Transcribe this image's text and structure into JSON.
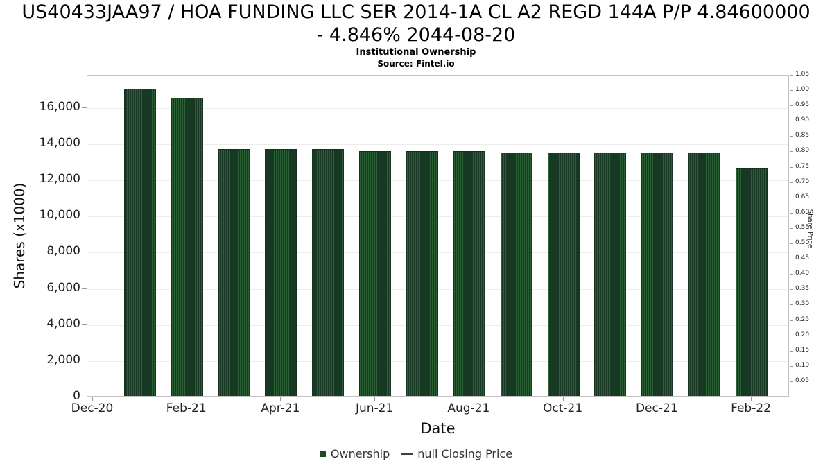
{
  "header": {
    "title_line1": "US40433JAA97 / HOA FUNDING LLC SER 2014-1A CL A2 REGD 144A P/P 4.84600000",
    "title_line2": "- 4.846% 2044-08-20",
    "subtitle": "Institutional Ownership",
    "source": "Source: Fintel.io"
  },
  "chart_data": {
    "type": "bar",
    "title": "US40433JAA97 / HOA FUNDING LLC SER 2014-1A CL A2 REGD 144A P/P 4.84600000 - 4.846% 2044-08-20",
    "subtitle": "Institutional Ownership",
    "source": "Source: Fintel.io",
    "xlabel": "Date",
    "ylabel": "Shares (x1000)",
    "y2label": "Share Price",
    "categories": [
      "Jan-21",
      "Feb-21",
      "Mar-21",
      "Apr-21",
      "May-21",
      "Jun-21",
      "Jul-21",
      "Aug-21",
      "Sep-21",
      "Oct-21",
      "Nov-21",
      "Dec-21",
      "Jan-22",
      "Feb-22"
    ],
    "series": [
      {
        "name": "Ownership",
        "values": [
          17000,
          16500,
          13650,
          13650,
          13650,
          13560,
          13560,
          13560,
          13480,
          13480,
          13480,
          13480,
          13480,
          12600
        ]
      }
    ],
    "ylim": [
      0,
      17800
    ],
    "y2lim": [
      0,
      1.05
    ],
    "grid": true,
    "legend_position": "bottom",
    "x_ticks": [
      {
        "label": "Dec-20",
        "month": 0
      },
      {
        "label": "Feb-21",
        "month": 2
      },
      {
        "label": "Apr-21",
        "month": 4
      },
      {
        "label": "Jun-21",
        "month": 6
      },
      {
        "label": "Aug-21",
        "month": 8
      },
      {
        "label": "Oct-21",
        "month": 10
      },
      {
        "label": "Dec-21",
        "month": 12
      },
      {
        "label": "Feb-22",
        "month": 14
      }
    ],
    "left_ticks": {
      "labels": [
        "0",
        "2,000",
        "4,000",
        "6,000",
        "8,000",
        "10,000",
        "12,000",
        "14,000",
        "16,000"
      ],
      "values": [
        0,
        2000,
        4000,
        6000,
        8000,
        10000,
        12000,
        14000,
        16000
      ]
    },
    "right_ticks": {
      "labels": [
        "0.05",
        "0.10",
        "0.15",
        "0.20",
        "0.25",
        "0.30",
        "0.35",
        "0.40",
        "0.45",
        "0.50",
        "0.55",
        "0.60",
        "0.65",
        "0.70",
        "0.75",
        "0.80",
        "0.85",
        "0.90",
        "0.95",
        "1.00",
        "1.05"
      ],
      "values": [
        0.05,
        0.1,
        0.15,
        0.2,
        0.25,
        0.3,
        0.35,
        0.4,
        0.45,
        0.5,
        0.55,
        0.6,
        0.65,
        0.7,
        0.75,
        0.8,
        0.85,
        0.9,
        0.95,
        1.0,
        1.05
      ]
    },
    "bar_color": "#1e4a24",
    "legend": [
      {
        "label": "Ownership",
        "marker": "square",
        "color": "#1e4a24"
      },
      {
        "label": "null Closing Price",
        "marker": "line",
        "color": "#404040"
      }
    ]
  }
}
